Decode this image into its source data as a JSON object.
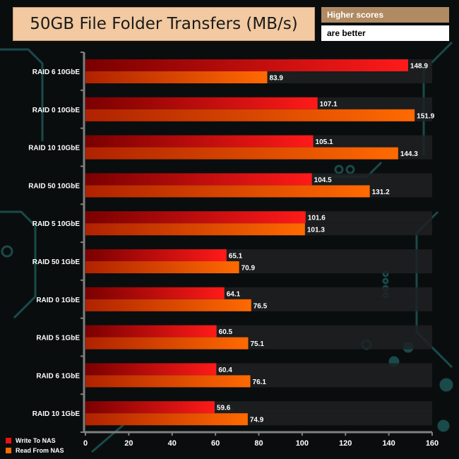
{
  "header": {
    "title": "50GB File Folder Transfers (MB/s)",
    "note_line1": "Higher scores",
    "note_line2": "are better"
  },
  "chart_data": {
    "type": "bar",
    "orientation": "horizontal",
    "title": "50GB File Folder Transfers (MB/s)",
    "xlabel": "",
    "ylabel": "",
    "categories": [
      "RAID 6 10GbE",
      "RAID 0 10GbE",
      "RAID 10 10GbE",
      "RAID 50 10GbE",
      "RAID 5 10GbE",
      "RAID 50 1GbE",
      "RAID 0 1GbE",
      "RAID 5 1GbE",
      "RAID 6 1GbE",
      "RAID 10 1GbE"
    ],
    "series": [
      {
        "name": "Write To NAS",
        "color": "#ee1111",
        "values": [
          148.9,
          107.1,
          105.1,
          104.5,
          101.6,
          65.1,
          64.1,
          60.5,
          60.4,
          59.6
        ]
      },
      {
        "name": "Read From NAS",
        "color": "#ff6a00",
        "values": [
          83.9,
          151.9,
          144.3,
          131.2,
          101.3,
          70.9,
          76.5,
          75.1,
          76.1,
          74.9
        ]
      }
    ],
    "xlim": [
      0,
      160
    ],
    "xticks": [
      0,
      20,
      40,
      60,
      80,
      100,
      120,
      140,
      160
    ],
    "grid": false,
    "legend_position": "bottom-left"
  }
}
